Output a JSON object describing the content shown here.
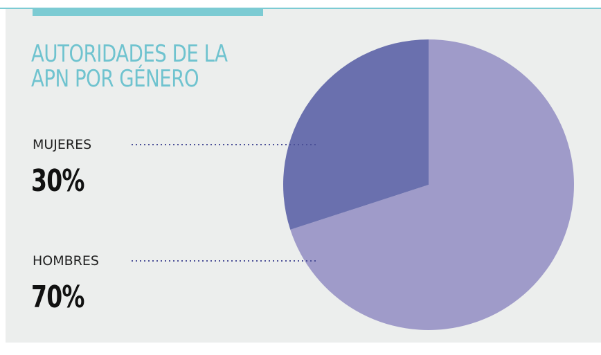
{
  "chart_data": {
    "type": "pie",
    "title": "AUTORIDADES DE LA APN POR GÉNERO",
    "categories": [
      "MUJERES",
      "HOMBRES"
    ],
    "values": [
      30,
      70
    ],
    "value_labels": [
      "30%",
      "70%"
    ],
    "colors": [
      "#6a70ae",
      "#9f9bc9"
    ]
  }
}
